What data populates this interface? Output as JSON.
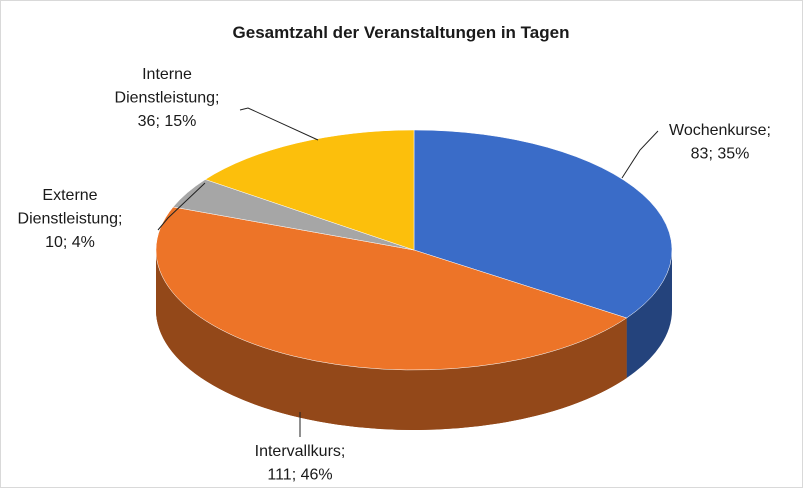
{
  "chart_data": {
    "type": "pie3d",
    "title": "Gesamtzahl der Veranstaltungen in Tagen",
    "values": [
      83,
      111,
      10,
      36
    ],
    "labels": [
      [
        "Wochenkurse;",
        "83; 35%"
      ],
      [
        "Intervallkurs;",
        "111; 46%"
      ],
      [
        "Externe",
        "Dienstleistung;",
        "10; 4%"
      ],
      [
        "Interne",
        "Dienstleistung;",
        "36; 15%"
      ]
    ],
    "colors": [
      "#3a6cc8",
      "#ed7428",
      "#a6a6a6",
      "#fcbf0c"
    ]
  }
}
